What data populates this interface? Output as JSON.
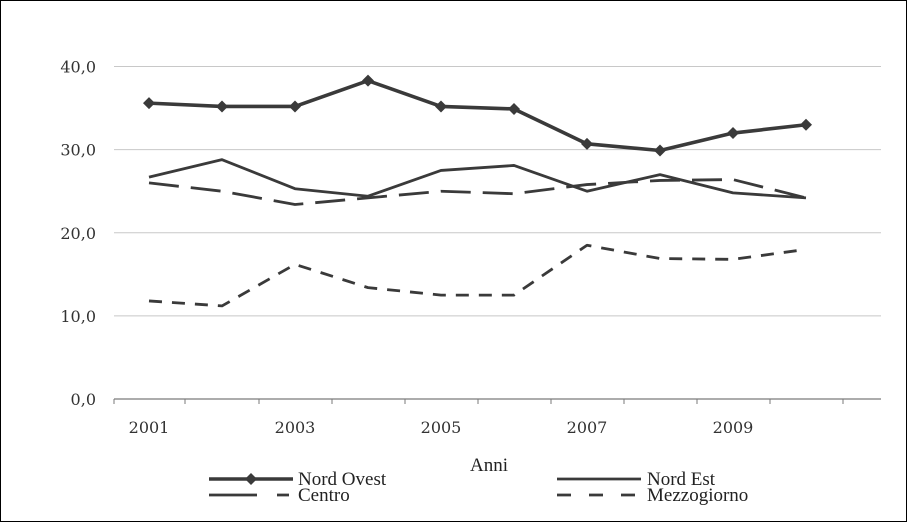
{
  "chart_data": {
    "type": "line",
    "title": "",
    "xlabel": "Anni",
    "ylabel": "",
    "x": [
      2001,
      2002,
      2003,
      2004,
      2005,
      2006,
      2007,
      2008,
      2009,
      2010
    ],
    "xticks": [
      "2001",
      "2003",
      "2005",
      "2007",
      "2009"
    ],
    "yticks": [
      "0,0",
      "10,0",
      "20,0",
      "30,0",
      "40,0"
    ],
    "ylim": [
      0,
      45
    ],
    "grid": "horizontal",
    "legend_position": "bottom",
    "series": [
      {
        "name": "Nord Ovest",
        "values": [
          35.6,
          35.2,
          35.2,
          38.3,
          35.2,
          34.9,
          30.7,
          29.9,
          32.0,
          33.0
        ],
        "color": "#3a3a3a",
        "style": "solid-diamond"
      },
      {
        "name": "Nord Est",
        "values": [
          26.7,
          28.8,
          25.3,
          24.4,
          27.5,
          28.1,
          25.0,
          27.0,
          24.8,
          24.2
        ],
        "color": "#3a3a3a",
        "style": "solid"
      },
      {
        "name": "Centro",
        "values": [
          26.0,
          25.0,
          23.4,
          24.2,
          25.0,
          24.7,
          25.8,
          26.3,
          26.4,
          24.2
        ],
        "color": "#3a3a3a",
        "style": "long-dash"
      },
      {
        "name": "Mezzogiorno",
        "values": [
          11.8,
          11.2,
          16.2,
          13.4,
          12.5,
          12.5,
          18.5,
          16.9,
          16.8,
          18.0
        ],
        "color": "#3a3a3a",
        "style": "short-dash"
      }
    ]
  }
}
